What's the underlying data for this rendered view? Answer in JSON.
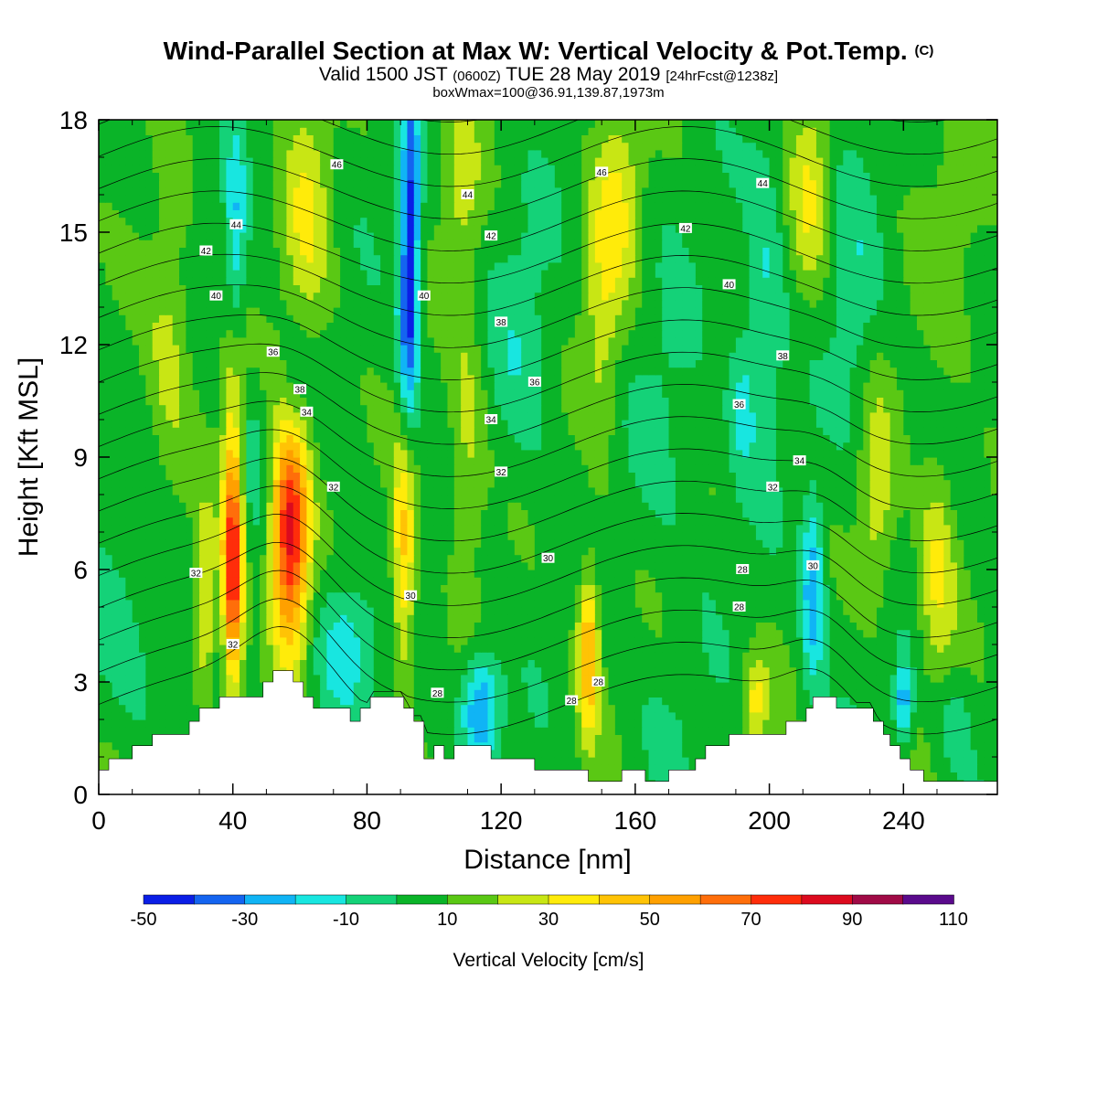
{
  "header": {
    "title": "Wind-Parallel Section at Max W: Vertical Velocity & Pot.Temp.",
    "copyright": "(C)",
    "subtitle_pre": "Valid 1500 JST",
    "subtitle_z": "(0600Z)",
    "subtitle_mid": "TUE 28 May 2019",
    "subtitle_fcst": "[24hrFcst@1238z]",
    "box_info": "boxWmax=100@36.91,139.87,1973m"
  },
  "chart_data": {
    "type": "heatmap",
    "xlabel": "Distance [nm]",
    "ylabel": "Height [Kft MSL]",
    "xlim": [
      0,
      268
    ],
    "ylim": [
      0,
      18
    ],
    "x_ticks": [
      0,
      40,
      80,
      120,
      160,
      200,
      240
    ],
    "y_ticks": [
      0,
      3,
      6,
      9,
      12,
      15,
      18
    ],
    "colorbar": {
      "title": "Vertical Velocity [cm/s]",
      "tick_labels": [
        "-50",
        "-30",
        "-10",
        "10",
        "30",
        "50",
        "70",
        "90",
        "110"
      ],
      "levels": [
        -50,
        -40,
        -30,
        -20,
        -10,
        0,
        10,
        20,
        30,
        40,
        50,
        60,
        70,
        80,
        90,
        100,
        110
      ],
      "colors": [
        "#0a1ee6",
        "#1464f0",
        "#10b4f5",
        "#18e6e0",
        "#14d278",
        "#0ab428",
        "#5ac814",
        "#c8e614",
        "#ffeb0a",
        "#ffc305",
        "#ffa000",
        "#ff6e0a",
        "#ff2d0a",
        "#dc0a1e",
        "#a00a46",
        "#5a0a8c"
      ]
    },
    "terrain_kft": [
      [
        0,
        0.65
      ],
      [
        3,
        0.65
      ],
      [
        3,
        0.95
      ],
      [
        10,
        0.95
      ],
      [
        10,
        1.3
      ],
      [
        16,
        1.3
      ],
      [
        16,
        1.6
      ],
      [
        27,
        1.6
      ],
      [
        27,
        1.95
      ],
      [
        30,
        1.95
      ],
      [
        30,
        2.3
      ],
      [
        36,
        2.3
      ],
      [
        36,
        2.6
      ],
      [
        49,
        2.6
      ],
      [
        49,
        3.0
      ],
      [
        52,
        3.0
      ],
      [
        52,
        3.3
      ],
      [
        58,
        3.3
      ],
      [
        58,
        3.0
      ],
      [
        61,
        3.0
      ],
      [
        61,
        2.6
      ],
      [
        64,
        2.6
      ],
      [
        64,
        2.3
      ],
      [
        75,
        2.3
      ],
      [
        75,
        1.95
      ],
      [
        78,
        1.95
      ],
      [
        78,
        2.3
      ],
      [
        81,
        2.3
      ],
      [
        81,
        2.6
      ],
      [
        91,
        2.6
      ],
      [
        91,
        2.3
      ],
      [
        94,
        2.3
      ],
      [
        94,
        1.95
      ],
      [
        97,
        1.95
      ],
      [
        97,
        0.95
      ],
      [
        100,
        0.95
      ],
      [
        100,
        1.3
      ],
      [
        103,
        1.3
      ],
      [
        103,
        0.95
      ],
      [
        106,
        0.95
      ],
      [
        106,
        1.3
      ],
      [
        117,
        1.3
      ],
      [
        117,
        0.95
      ],
      [
        130,
        0.95
      ],
      [
        130,
        0.65
      ],
      [
        146,
        0.65
      ],
      [
        146,
        0.35
      ],
      [
        156,
        0.35
      ],
      [
        156,
        0.65
      ],
      [
        163,
        0.65
      ],
      [
        163,
        0.35
      ],
      [
        170,
        0.35
      ],
      [
        170,
        0.65
      ],
      [
        178,
        0.65
      ],
      [
        178,
        0.95
      ],
      [
        181,
        0.95
      ],
      [
        181,
        1.3
      ],
      [
        188,
        1.3
      ],
      [
        188,
        1.6
      ],
      [
        205,
        1.6
      ],
      [
        205,
        1.95
      ],
      [
        211,
        1.95
      ],
      [
        211,
        2.3
      ],
      [
        213,
        2.3
      ],
      [
        213,
        2.6
      ],
      [
        220,
        2.6
      ],
      [
        220,
        2.3
      ],
      [
        231,
        2.3
      ],
      [
        231,
        1.95
      ],
      [
        234,
        1.95
      ],
      [
        234,
        1.6
      ],
      [
        236,
        1.6
      ],
      [
        236,
        1.3
      ],
      [
        239,
        1.3
      ],
      [
        239,
        0.95
      ],
      [
        242,
        0.95
      ],
      [
        242,
        0.65
      ],
      [
        246,
        0.65
      ],
      [
        246,
        0.35
      ],
      [
        268,
        0.35
      ]
    ],
    "w_centers": [
      {
        "x": 57,
        "y": 7.0,
        "sx": 4.0,
        "sy": 2.2,
        "w": 82
      },
      {
        "x": 40,
        "y": 6.2,
        "sx": 2.2,
        "sy": 2.4,
        "w": 78
      },
      {
        "x": 32,
        "y": 5.0,
        "sx": 2.0,
        "sy": 1.8,
        "w": 28
      },
      {
        "x": 91,
        "y": 6.5,
        "sx": 2.5,
        "sy": 2.4,
        "w": 38
      },
      {
        "x": 146,
        "y": 3.8,
        "sx": 2.2,
        "sy": 1.6,
        "w": 45
      },
      {
        "x": 114,
        "y": 2.3,
        "sx": 4.0,
        "sy": 1.0,
        "w": -40
      },
      {
        "x": 93,
        "y": 15.5,
        "sx": 2.0,
        "sy": 2.6,
        "w": -45
      },
      {
        "x": 92,
        "y": 12.0,
        "sx": 2.2,
        "sy": 2.0,
        "w": -30
      },
      {
        "x": 41,
        "y": 15.0,
        "sx": 2.0,
        "sy": 2.2,
        "w": -22
      },
      {
        "x": 213,
        "y": 5.5,
        "sx": 2.5,
        "sy": 1.8,
        "w": -35
      },
      {
        "x": 240,
        "y": 2.5,
        "sx": 2.0,
        "sy": 0.8,
        "w": -35
      },
      {
        "x": 73,
        "y": 4.0,
        "sx": 6,
        "sy": 1.3,
        "w": -24
      },
      {
        "x": 45,
        "y": 9.0,
        "sx": 5,
        "sy": 1.5,
        "w": -12
      },
      {
        "x": 8,
        "y": 4.0,
        "sx": 8,
        "sy": 1.8,
        "w": -10
      },
      {
        "x": 40,
        "y": 10.5,
        "sx": 2.5,
        "sy": 1.5,
        "w": 14
      },
      {
        "x": 250,
        "y": 6.0,
        "sx": 4,
        "sy": 2.0,
        "w": 25
      },
      {
        "x": 232,
        "y": 8.0,
        "sx": 4,
        "sy": 2.0,
        "w": 22
      },
      {
        "x": 199,
        "y": 13.5,
        "sx": 4,
        "sy": 3.0,
        "w": -16
      },
      {
        "x": 126,
        "y": 12.0,
        "sx": 7,
        "sy": 2.5,
        "w": -12
      },
      {
        "x": 170,
        "y": 10.0,
        "sx": 8,
        "sy": 3.0,
        "w": -8
      },
      {
        "x": 225,
        "y": 13.0,
        "sx": 5,
        "sy": 3.0,
        "w": -12
      },
      {
        "x": 21,
        "y": 12.0,
        "sx": 5,
        "sy": 2.5,
        "w": 18
      },
      {
        "x": 62,
        "y": 15.5,
        "sx": 5,
        "sy": 2.5,
        "w": 22
      },
      {
        "x": 108,
        "y": 16.5,
        "sx": 4,
        "sy": 1.8,
        "w": 18
      },
      {
        "x": 155,
        "y": 16.0,
        "sx": 5,
        "sy": 2.0,
        "w": 22
      },
      {
        "x": 212,
        "y": 16.0,
        "sx": 4,
        "sy": 2.0,
        "w": 22
      },
      {
        "x": 255,
        "y": 15.0,
        "sx": 8,
        "sy": 3.0,
        "w": 8
      },
      {
        "x": 58,
        "y": 10.8,
        "sx": 3,
        "sy": 1.2,
        "w": -14
      },
      {
        "x": 150,
        "y": 12.5,
        "sx": 4,
        "sy": 2.5,
        "w": 18
      },
      {
        "x": 192,
        "y": 10.5,
        "sx": 3,
        "sy": 1.5,
        "w": -18
      },
      {
        "x": 110,
        "y": 9.5,
        "sx": 4,
        "sy": 2.5,
        "w": 18
      },
      {
        "x": 196,
        "y": 2.5,
        "sx": 3,
        "sy": 0.8,
        "w": 28
      },
      {
        "x": 255,
        "y": 2.0,
        "sx": 4,
        "sy": 0.9,
        "w": -12
      },
      {
        "x": 170,
        "y": 2.0,
        "sx": 8,
        "sy": 1.2,
        "w": -5
      }
    ],
    "contour_levels": [
      28,
      29,
      30,
      31,
      32,
      33,
      34,
      35,
      36,
      37,
      38,
      39,
      40,
      41,
      42,
      43,
      44,
      45,
      46,
      47
    ],
    "contour_labels": [
      {
        "text": "46",
        "x": 71,
        "y": 16.8
      },
      {
        "text": "44",
        "x": 41,
        "y": 15.2
      },
      {
        "text": "42",
        "x": 32,
        "y": 14.5
      },
      {
        "text": "40",
        "x": 35,
        "y": 13.3
      },
      {
        "text": "36",
        "x": 52,
        "y": 11.8
      },
      {
        "text": "38",
        "x": 60,
        "y": 10.8
      },
      {
        "text": "34",
        "x": 62,
        "y": 10.2
      },
      {
        "text": "32",
        "x": 70,
        "y": 8.2
      },
      {
        "text": "32",
        "x": 29,
        "y": 5.9
      },
      {
        "text": "32",
        "x": 40,
        "y": 4.0
      },
      {
        "text": "44",
        "x": 110,
        "y": 16.0
      },
      {
        "text": "42",
        "x": 117,
        "y": 14.9
      },
      {
        "text": "40",
        "x": 97,
        "y": 13.3
      },
      {
        "text": "38",
        "x": 120,
        "y": 12.6
      },
      {
        "text": "36",
        "x": 130,
        "y": 11.0
      },
      {
        "text": "34",
        "x": 117,
        "y": 10.0
      },
      {
        "text": "32",
        "x": 120,
        "y": 8.6
      },
      {
        "text": "30",
        "x": 134,
        "y": 6.3
      },
      {
        "text": "30",
        "x": 93,
        "y": 5.3
      },
      {
        "text": "28",
        "x": 101,
        "y": 2.7
      },
      {
        "text": "28",
        "x": 141,
        "y": 2.5
      },
      {
        "text": "28",
        "x": 149,
        "y": 3.0
      },
      {
        "text": "46",
        "x": 150,
        "y": 16.6
      },
      {
        "text": "42",
        "x": 175,
        "y": 15.1
      },
      {
        "text": "44",
        "x": 198,
        "y": 16.3
      },
      {
        "text": "40",
        "x": 188,
        "y": 13.6
      },
      {
        "text": "38",
        "x": 204,
        "y": 11.7
      },
      {
        "text": "36",
        "x": 191,
        "y": 10.4
      },
      {
        "text": "34",
        "x": 209,
        "y": 8.9
      },
      {
        "text": "32",
        "x": 201,
        "y": 8.2
      },
      {
        "text": "30",
        "x": 213,
        "y": 6.1
      },
      {
        "text": "28",
        "x": 192,
        "y": 6.0
      },
      {
        "text": "28",
        "x": 191,
        "y": 5.0
      }
    ]
  }
}
